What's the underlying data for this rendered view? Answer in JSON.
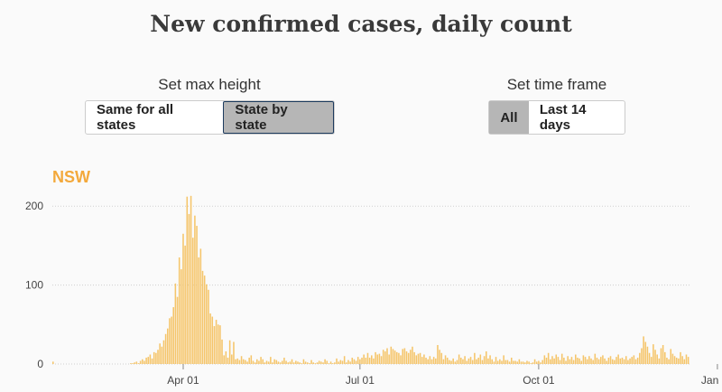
{
  "title": "New confirmed cases, daily count",
  "controls": {
    "max_height": {
      "label": "Set max height",
      "options": [
        "Same for all states",
        "State by state"
      ],
      "selected": "State by state"
    },
    "time_frame": {
      "label": "Set time frame",
      "options": [
        "All",
        "Last 14 days"
      ],
      "selected": "All"
    }
  },
  "colors": {
    "bar": "#f5c56a",
    "state": "#f3a93c",
    "grid": "#cfcfcf"
  },
  "chart_data": {
    "type": "bar",
    "series_name": "NSW",
    "ylim": [
      0,
      215
    ],
    "yticks": [
      0,
      100,
      200
    ],
    "ytick_labels": [
      "0",
      "100",
      "200"
    ],
    "x_start": "2020-01-25",
    "xticks": [
      "2020-04-01",
      "2020-07-01",
      "2020-10-01",
      "2021-01-01"
    ],
    "xtick_labels": [
      "Apr 01",
      "Jul 01",
      "Oct 01",
      "Jan 01"
    ],
    "values": [
      3,
      0,
      0,
      0,
      0,
      0,
      0,
      0,
      0,
      0,
      0,
      0,
      0,
      0,
      0,
      0,
      0,
      0,
      0,
      0,
      0,
      0,
      0,
      0,
      0,
      0,
      0,
      0,
      0,
      0,
      0,
      0,
      0,
      0,
      0,
      0,
      0,
      0,
      0,
      0,
      1,
      1,
      2,
      3,
      1,
      4,
      6,
      4,
      8,
      9,
      12,
      7,
      15,
      14,
      18,
      26,
      22,
      30,
      38,
      45,
      58,
      60,
      72,
      102,
      85,
      135,
      120,
      165,
      150,
      212,
      190,
      213,
      160,
      188,
      175,
      135,
      146,
      118,
      112,
      101,
      94,
      64,
      60,
      48,
      56,
      50,
      49,
      31,
      11,
      16,
      8,
      30,
      12,
      28,
      6,
      7,
      5,
      10,
      6,
      5,
      3,
      8,
      11,
      4,
      2,
      6,
      4,
      9,
      6,
      2,
      4,
      3,
      9,
      2,
      6,
      5,
      3,
      2,
      4,
      8,
      4,
      2,
      3,
      6,
      2,
      4,
      3,
      2,
      1,
      6,
      3,
      2,
      1,
      5,
      2,
      1,
      2,
      4,
      3,
      2,
      6,
      4,
      1,
      3,
      1,
      2,
      7,
      3,
      5,
      4,
      10,
      2,
      5,
      3,
      8,
      6,
      4,
      9,
      6,
      8,
      12,
      8,
      14,
      8,
      11,
      7,
      15,
      12,
      13,
      10,
      18,
      16,
      20,
      12,
      22,
      19,
      17,
      15,
      14,
      11,
      19,
      20,
      16,
      14,
      18,
      22,
      15,
      11,
      13,
      14,
      9,
      12,
      8,
      6,
      10,
      6,
      9,
      7,
      24,
      18,
      14,
      6,
      11,
      8,
      5,
      4,
      7,
      3,
      5,
      12,
      8,
      6,
      10,
      4,
      7,
      9,
      5,
      14,
      6,
      8,
      12,
      5,
      10,
      16,
      7,
      11,
      6,
      3,
      9,
      4,
      6,
      4,
      11,
      5,
      5,
      3,
      8,
      4,
      4,
      3,
      6,
      3,
      3,
      2,
      4,
      3,
      1,
      2,
      6,
      3,
      4,
      2,
      5,
      11,
      8,
      14,
      6,
      10,
      7,
      12,
      9,
      5,
      13,
      8,
      4,
      10,
      6,
      9,
      5,
      12,
      8,
      7,
      4,
      11,
      9,
      6,
      10,
      7,
      5,
      13,
      8,
      6,
      9,
      11,
      7,
      4,
      8,
      10,
      6,
      5,
      9,
      12,
      7,
      8,
      6,
      10,
      5,
      7,
      9,
      11,
      6,
      8,
      14,
      20,
      35,
      28,
      22,
      14,
      9,
      25,
      18,
      12,
      7,
      20,
      24,
      15,
      8,
      6,
      19,
      13,
      10,
      8,
      7,
      15,
      10,
      6,
      12,
      9
    ]
  }
}
